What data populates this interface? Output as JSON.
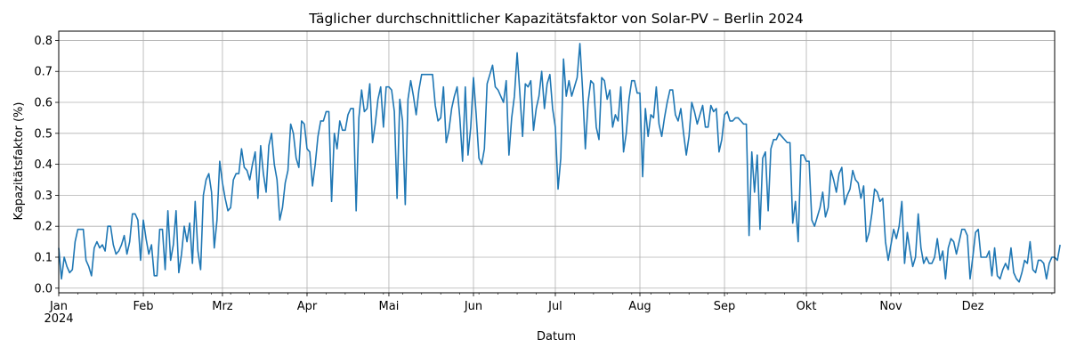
{
  "chart_data": {
    "type": "line",
    "title": "Täglicher durchschnittlicher Kapazitätsfaktor von Solar-PV – Berlin 2024",
    "xlabel": "Datum",
    "ylabel": "Kapazitätsfaktor (%)",
    "ylim": [
      -0.015,
      0.83
    ],
    "xlim": [
      "2024-01-01",
      "2024-12-31"
    ],
    "grid": true,
    "legend": "none",
    "line_color": "#1f77b4",
    "grid_color": "#b0b0b0",
    "y_ticks": [
      0.0,
      0.1,
      0.2,
      0.3,
      0.4,
      0.5,
      0.6,
      0.7,
      0.8
    ],
    "y_tick_labels": [
      "0.0",
      "0.1",
      "0.2",
      "0.3",
      "0.4",
      "0.5",
      "0.6",
      "0.7",
      "0.8"
    ],
    "x_ticks": [
      {
        "date": "2024-01-01",
        "label": "Jan",
        "sublabel": "2024"
      },
      {
        "date": "2024-02-01",
        "label": "Feb"
      },
      {
        "date": "2024-03-01",
        "label": "Mrz"
      },
      {
        "date": "2024-04-01",
        "label": "Apr"
      },
      {
        "date": "2024-05-01",
        "label": "Mai"
      },
      {
        "date": "2024-06-01",
        "label": "Jun"
      },
      {
        "date": "2024-07-01",
        "label": "Jul"
      },
      {
        "date": "2024-08-01",
        "label": "Aug"
      },
      {
        "date": "2024-09-01",
        "label": "Sep"
      },
      {
        "date": "2024-10-01",
        "label": "Okt"
      },
      {
        "date": "2024-11-01",
        "label": "Nov"
      },
      {
        "date": "2024-12-01",
        "label": "Dez"
      }
    ],
    "series": [
      {
        "x_start": "2024-01-01",
        "x_step": "1 day",
        "values": [
          0.13,
          0.03,
          0.1,
          0.07,
          0.05,
          0.06,
          0.15,
          0.19,
          0.19,
          0.19,
          0.09,
          0.07,
          0.04,
          0.13,
          0.15,
          0.13,
          0.14,
          0.12,
          0.2,
          0.2,
          0.14,
          0.11,
          0.12,
          0.14,
          0.17,
          0.11,
          0.15,
          0.24,
          0.24,
          0.22,
          0.09,
          0.22,
          0.16,
          0.11,
          0.14,
          0.04,
          0.04,
          0.19,
          0.19,
          0.06,
          0.25,
          0.09,
          0.14,
          0.25,
          0.05,
          0.11,
          0.2,
          0.15,
          0.21,
          0.08,
          0.28,
          0.12,
          0.06,
          0.3,
          0.35,
          0.37,
          0.31,
          0.13,
          0.22,
          0.41,
          0.34,
          0.29,
          0.25,
          0.26,
          0.35,
          0.37,
          0.37,
          0.45,
          0.39,
          0.38,
          0.35,
          0.4,
          0.44,
          0.29,
          0.46,
          0.37,
          0.31,
          0.46,
          0.5,
          0.4,
          0.35,
          0.22,
          0.26,
          0.34,
          0.38,
          0.53,
          0.5,
          0.42,
          0.39,
          0.54,
          0.53,
          0.45,
          0.44,
          0.33,
          0.4,
          0.49,
          0.54,
          0.54,
          0.57,
          0.57,
          0.28,
          0.5,
          0.45,
          0.54,
          0.51,
          0.51,
          0.56,
          0.58,
          0.58,
          0.25,
          0.55,
          0.64,
          0.57,
          0.58,
          0.66,
          0.47,
          0.53,
          0.61,
          0.65,
          0.52,
          0.65,
          0.65,
          0.64,
          0.57,
          0.29,
          0.61,
          0.54,
          0.27,
          0.61,
          0.67,
          0.62,
          0.56,
          0.64,
          0.69,
          0.69,
          0.69,
          0.69,
          0.69,
          0.59,
          0.54,
          0.55,
          0.65,
          0.47,
          0.51,
          0.58,
          0.62,
          0.65,
          0.55,
          0.41,
          0.65,
          0.43,
          0.52,
          0.68,
          0.56,
          0.42,
          0.4,
          0.45,
          0.66,
          0.69,
          0.72,
          0.65,
          0.64,
          0.62,
          0.6,
          0.67,
          0.43,
          0.55,
          0.62,
          0.76,
          0.63,
          0.49,
          0.66,
          0.65,
          0.67,
          0.51,
          0.58,
          0.62,
          0.7,
          0.58,
          0.66,
          0.69,
          0.58,
          0.52,
          0.32,
          0.42,
          0.74,
          0.62,
          0.67,
          0.62,
          0.65,
          0.68,
          0.79,
          0.64,
          0.45,
          0.6,
          0.67,
          0.66,
          0.52,
          0.48,
          0.68,
          0.67,
          0.61,
          0.64,
          0.52,
          0.56,
          0.54,
          0.65,
          0.44,
          0.5,
          0.61,
          0.67,
          0.67,
          0.63,
          0.63,
          0.36,
          0.58,
          0.49,
          0.56,
          0.55,
          0.65,
          0.53,
          0.49,
          0.55,
          0.6,
          0.64,
          0.64,
          0.56,
          0.54,
          0.58,
          0.5,
          0.43,
          0.49,
          0.6,
          0.57,
          0.53,
          0.56,
          0.59,
          0.52,
          0.52,
          0.59,
          0.57,
          0.58,
          0.44,
          0.48,
          0.56,
          0.57,
          0.54,
          0.54,
          0.55,
          0.55,
          0.54,
          0.53,
          0.53,
          0.17,
          0.44,
          0.31,
          0.43,
          0.19,
          0.42,
          0.44,
          0.25,
          0.45,
          0.48,
          0.48,
          0.5,
          0.49,
          0.48,
          0.47,
          0.47,
          0.21,
          0.28,
          0.15,
          0.43,
          0.43,
          0.41,
          0.41,
          0.22,
          0.2,
          0.23,
          0.26,
          0.31,
          0.23,
          0.26,
          0.38,
          0.35,
          0.31,
          0.37,
          0.39,
          0.27,
          0.3,
          0.32,
          0.38,
          0.35,
          0.34,
          0.29,
          0.33,
          0.15,
          0.18,
          0.24,
          0.32,
          0.31,
          0.28,
          0.29,
          0.15,
          0.09,
          0.14,
          0.19,
          0.16,
          0.2,
          0.28,
          0.08,
          0.18,
          0.12,
          0.07,
          0.1,
          0.24,
          0.13,
          0.08,
          0.1,
          0.08,
          0.08,
          0.1,
          0.16,
          0.09,
          0.12,
          0.03,
          0.13,
          0.16,
          0.15,
          0.11,
          0.15,
          0.19,
          0.19,
          0.17,
          0.03,
          0.1,
          0.18,
          0.19,
          0.1,
          0.1,
          0.1,
          0.12,
          0.04,
          0.13,
          0.04,
          0.03,
          0.06,
          0.08,
          0.06,
          0.13,
          0.05,
          0.03,
          0.02,
          0.05,
          0.09,
          0.08,
          0.15,
          0.06,
          0.05,
          0.09,
          0.09,
          0.08,
          0.03,
          0.08,
          0.1,
          0.1,
          0.09,
          0.14
        ]
      }
    ]
  }
}
